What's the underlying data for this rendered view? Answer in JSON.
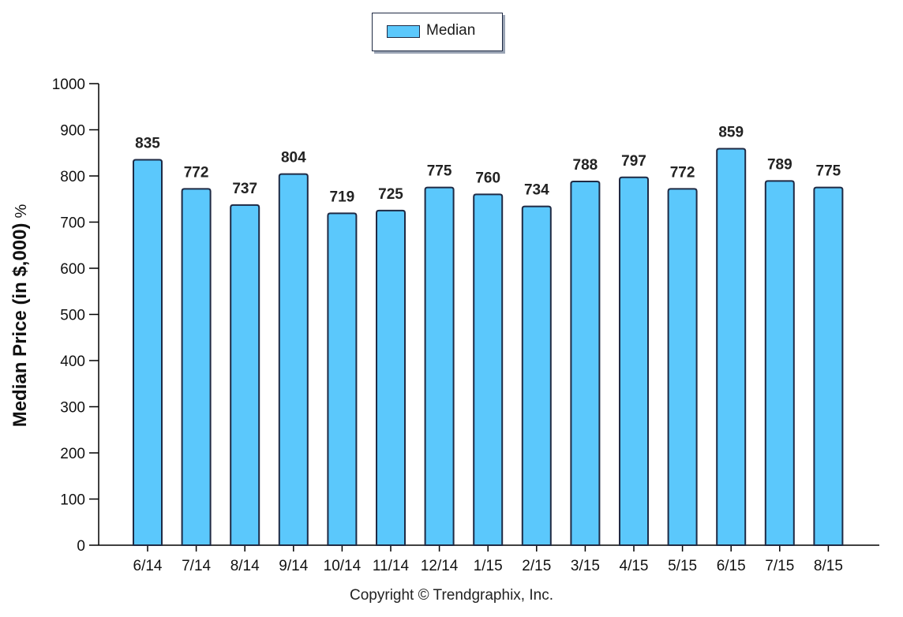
{
  "chart_data": {
    "type": "bar",
    "categories": [
      "6/14",
      "7/14",
      "8/14",
      "9/14",
      "10/14",
      "11/14",
      "12/14",
      "1/15",
      "2/15",
      "3/15",
      "4/15",
      "5/15",
      "6/15",
      "7/15",
      "8/15"
    ],
    "series": [
      {
        "name": "Median",
        "values": [
          835,
          772,
          737,
          804,
          719,
          725,
          775,
          760,
          734,
          788,
          797,
          772,
          859,
          789,
          775
        ]
      }
    ],
    "data_labels": [
      "835",
      "772",
      "737",
      "804",
      "719",
      "725",
      "775",
      "760",
      "734",
      "788",
      "797",
      "772",
      "859",
      "789",
      "775"
    ],
    "xlabel": "",
    "ylabel": "Median Price (in $,000)",
    "ylabel_suffix": "%",
    "ylim": [
      0,
      1000
    ],
    "yticks": [
      0,
      100,
      200,
      300,
      400,
      500,
      600,
      700,
      800,
      900,
      1000
    ],
    "ytick_labels": [
      "0",
      "100",
      "200",
      "300",
      "400",
      "500",
      "600",
      "700",
      "800",
      "900",
      "1000"
    ],
    "grid": false,
    "legend_position": "top-center",
    "bar_color": "#5bc8fc",
    "outline_color": "#1f2a44"
  },
  "footer": {
    "copyright": "Copyright © Trendgraphix, Inc."
  }
}
